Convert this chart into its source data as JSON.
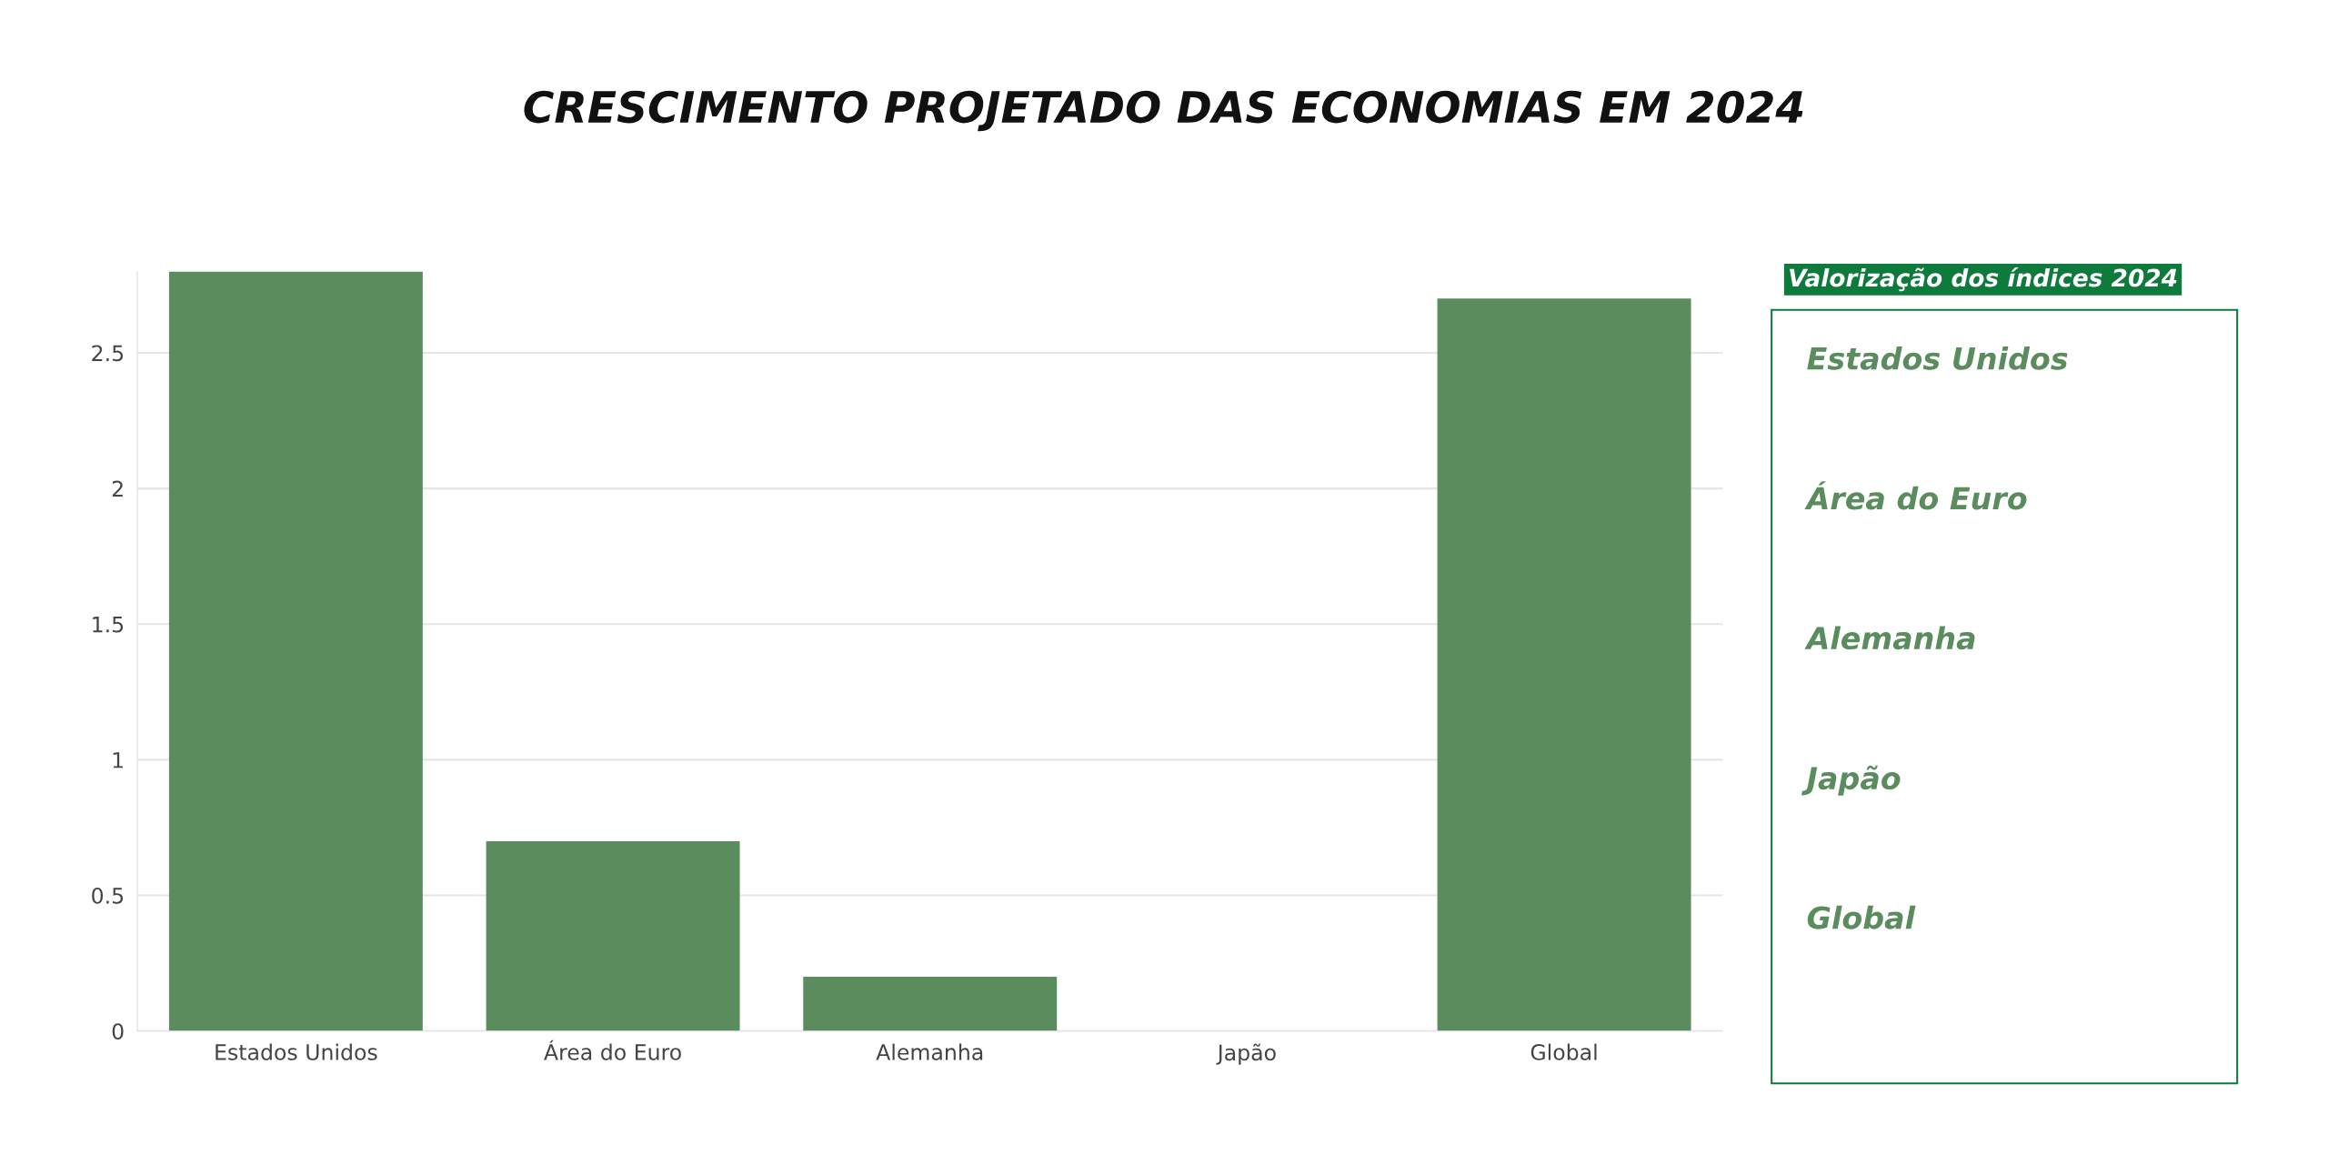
{
  "chart_data": [
    {
      "type": "bar",
      "title": "CRESCIMENTO PROJETADO DAS ECONOMIAS EM 2024",
      "categories": [
        "Estados Unidos",
        "Área do Euro",
        "Alemanha",
        "Japão",
        "Global"
      ],
      "values": [
        2.8,
        0.7,
        0.2,
        null,
        2.7
      ],
      "color": "#5a8c5e",
      "ylim": [
        0,
        2.8
      ],
      "yticks": [
        0,
        0.5,
        1,
        1.5,
        2,
        2.5
      ],
      "grid": "y"
    },
    {
      "type": "other",
      "title": "Valorização dos índices 2024",
      "color": "#0e7a3c",
      "annotations": [
        "Estados Unidos",
        "Área do Euro",
        "Alemanha",
        "Japão",
        "Global"
      ]
    }
  ]
}
